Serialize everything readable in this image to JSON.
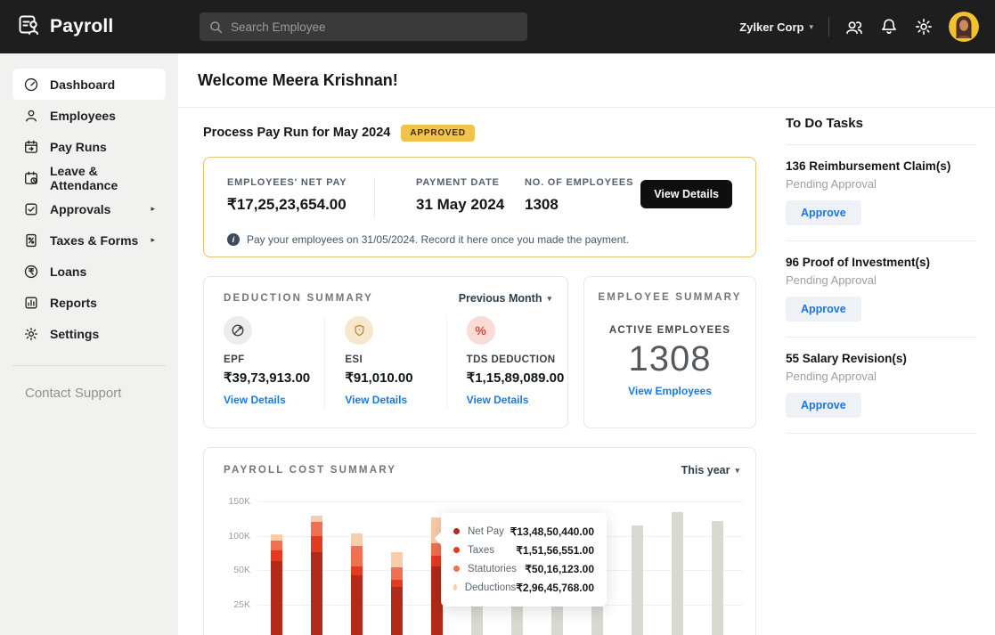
{
  "topbar": {
    "brand": "Payroll",
    "search_placeholder": "Search Employee",
    "org_name": "Zylker Corp",
    "icons": [
      "users-icon",
      "bell-icon",
      "gear-icon",
      "avatar"
    ]
  },
  "sidebar": {
    "items": [
      {
        "label": "Dashboard",
        "icon": "dashboard-gauge-icon",
        "active": true,
        "has_submenu": false
      },
      {
        "label": "Employees",
        "icon": "employees-icon",
        "active": false,
        "has_submenu": false
      },
      {
        "label": "Pay Runs",
        "icon": "pay-runs-icon",
        "active": false,
        "has_submenu": false
      },
      {
        "label": "Leave & Attendance",
        "icon": "leave-attendance-icon",
        "active": false,
        "has_submenu": false
      },
      {
        "label": "Approvals",
        "icon": "approvals-icon",
        "active": false,
        "has_submenu": true
      },
      {
        "label": "Taxes & Forms",
        "icon": "taxes-forms-icon",
        "active": false,
        "has_submenu": true
      },
      {
        "label": "Loans",
        "icon": "loans-icon",
        "active": false,
        "has_submenu": false
      },
      {
        "label": "Reports",
        "icon": "reports-icon",
        "active": false,
        "has_submenu": false
      },
      {
        "label": "Settings",
        "icon": "settings-icon",
        "active": false,
        "has_submenu": false
      }
    ],
    "support_link": "Contact Support"
  },
  "main": {
    "welcome": "Welcome Meera Krishnan!",
    "payrun": {
      "title": "Process Pay Run for May 2024",
      "badge": "APPROVED",
      "stats": [
        {
          "label": "EMPLOYEES' NET PAY",
          "value": "₹17,25,23,654.00"
        },
        {
          "label": "PAYMENT DATE",
          "value": "31 May 2024"
        },
        {
          "label": "NO. OF EMPLOYEES",
          "value": "1308"
        }
      ],
      "action": "View Details",
      "note": "Pay your employees on 31/05/2024. Record it here once you made the payment."
    },
    "deduction_summary": {
      "title": "DEDUCTION SUMMARY",
      "period": "Previous Month",
      "items": [
        {
          "label": "EPF",
          "value": "₹39,73,913.00",
          "link": "View Details",
          "icon": "epf-icon"
        },
        {
          "label": "ESI",
          "value": "₹91,010.00",
          "link": "View Details",
          "icon": "esi-shield-icon"
        },
        {
          "label": "TDS DEDUCTION",
          "value": "₹1,15,89,089.00",
          "link": "View Details",
          "icon": "tds-percent-icon"
        }
      ]
    },
    "employee_summary": {
      "title": "EMPLOYEE SUMMARY",
      "label": "ACTIVE EMPLOYEES",
      "count": "1308",
      "link": "View Employees"
    },
    "payroll_cost": {
      "title": "PAYROLL COST SUMMARY",
      "period": "This year"
    }
  },
  "todo": {
    "title": "To Do Tasks",
    "tasks": [
      {
        "title": "136 Reimbursement Claim(s)",
        "status": "Pending Approval",
        "action": "Approve"
      },
      {
        "title": "96 Proof of Investment(s)",
        "status": "Pending Approval",
        "action": "Approve"
      },
      {
        "title": "55 Salary Revision(s)",
        "status": "Pending Approval",
        "action": "Approve"
      }
    ]
  },
  "colors": {
    "topbar_bg": "#1e1e1e",
    "accent_blue": "#1a7ae0",
    "badge_bg": "#f2c24e",
    "payrun_border": "#e9c26d"
  },
  "chart_data": {
    "type": "bar",
    "stacked": true,
    "title": "PAYROLL COST SUMMARY",
    "period_selector": "This year",
    "y_ticks": [
      "150K",
      "100K",
      "50K",
      "25K"
    ],
    "categories": null,
    "note": "12 monthly bars; x-axis labels cut off at bottom edge of screenshot; bars 6-9 tops hidden behind tooltip; values in K estimated from bar heights",
    "series_order": [
      "Net Pay",
      "Taxes",
      "Statutories",
      "Deductions"
    ],
    "colors": {
      "Net Pay": "#b22a18",
      "Taxes": "#e33b1e",
      "Statutories": "#f07052",
      "Deductions": "#f8cdab",
      "empty": "#d9d9d1"
    },
    "bars": [
      {
        "segments": [
          63,
          16,
          15,
          9
        ]
      },
      {
        "segments": [
          76,
          24,
          20,
          9
        ]
      },
      {
        "segments": [
          46,
          9,
          31,
          18
        ]
      },
      {
        "segments": [
          38,
          5,
          11,
          22
        ]
      },
      {
        "segments": [
          55,
          16,
          19,
          37
        ]
      },
      {
        "value": 112
      },
      {
        "value": 118
      },
      {
        "value": 109
      },
      {
        "value": 114
      },
      {
        "value": 115
      },
      {
        "value": 134
      },
      {
        "value": 122
      }
    ],
    "highlighted_bar_index": 4,
    "tooltip": {
      "rows": [
        {
          "label": "Net Pay",
          "value": "₹13,48,50,440.00"
        },
        {
          "label": "Taxes",
          "value": "₹1,51,56,551.00"
        },
        {
          "label": "Statutories",
          "value": "₹50,16,123.00"
        },
        {
          "label": "Deductions",
          "value": "₹2,96,45,768.00"
        }
      ]
    }
  }
}
